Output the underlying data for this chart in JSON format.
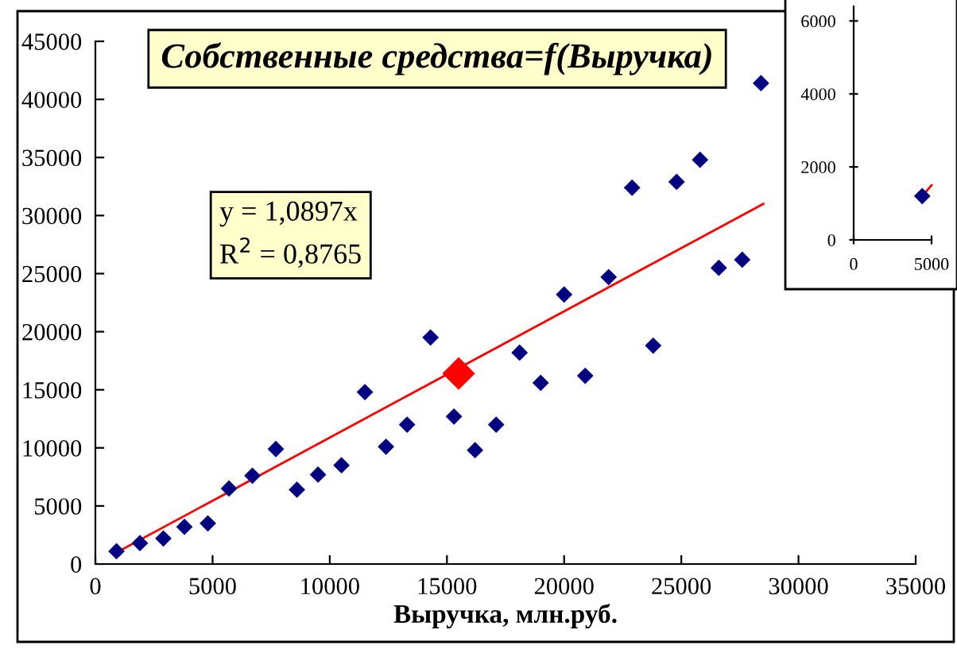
{
  "chart_data": [
    {
      "type": "scatter",
      "title": "Собственные средства=f(Выручка)",
      "xlabel": "Выручка, млн.руб.",
      "xlim": [
        0,
        35000
      ],
      "xticks": [
        0,
        5000,
        10000,
        15000,
        20000,
        25000,
        30000,
        35000
      ],
      "ylim": [
        0,
        45000
      ],
      "yticks": [
        0,
        5000,
        10000,
        15000,
        20000,
        25000,
        30000,
        35000,
        40000,
        45000
      ],
      "grid": false,
      "legend": false,
      "annotations": [
        "y = 1,0897x",
        "R$^{2}$ = 0,8765"
      ],
      "series": [
        {
          "type": "line",
          "color": "#ff0000",
          "marker": "none",
          "x": [
            1000,
            28500
          ],
          "values": [
            1100,
            31000
          ]
        },
        {
          "color": "#000080",
          "marker": "diamond",
          "x": [
            900,
            1900,
            2900,
            3800,
            4800,
            5700,
            6700,
            7700,
            8600,
            9500,
            10500,
            11500,
            12400,
            13300,
            14300,
            15300,
            16200,
            17100,
            18100,
            19000,
            20000,
            20900,
            21900,
            22900,
            23800,
            24800,
            25800,
            26600,
            27600,
            28400
          ],
          "values": [
            1100,
            1800,
            2200,
            3200,
            3500,
            6500,
            7600,
            9900,
            6400,
            7700,
            8500,
            14800,
            10100,
            12000,
            19500,
            12700,
            9800,
            12000,
            18200,
            15600,
            23200,
            16200,
            24700,
            32400,
            18800,
            32900,
            34800,
            25500,
            26200,
            41400
          ]
        },
        {
          "color": "#ff0000",
          "marker": "diamond",
          "x": [
            15500
          ],
          "values": [
            16400
          ]
        }
      ]
    },
    {
      "type": "scatter",
      "xlim": [
        0,
        5000
      ],
      "xticks": [
        0,
        5000
      ],
      "ylim": [
        0,
        6400
      ],
      "yticks": [
        0,
        2000,
        4000,
        6000
      ],
      "grid": false,
      "legend": false,
      "series": [
        {
          "type": "line",
          "color": "#ff0000",
          "marker": "none",
          "x": [
            4400,
            5000
          ],
          "values": [
            1200,
            1500
          ]
        },
        {
          "color": "#000080",
          "marker": "diamond",
          "x": [
            4400
          ],
          "values": [
            1200
          ]
        }
      ]
    }
  ]
}
